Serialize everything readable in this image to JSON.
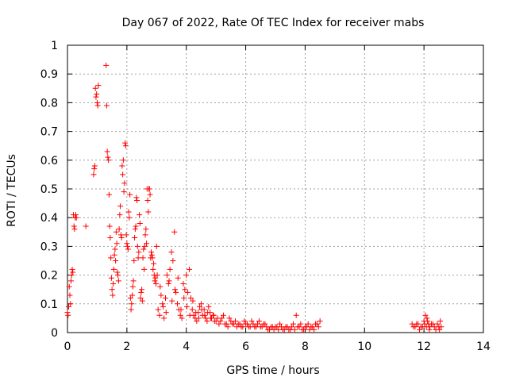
{
  "chart_data": {
    "type": "scatter",
    "title": "Day 067 of 2022, Rate Of TEC Index for receiver mabs",
    "xlabel": "GPS time / hours",
    "ylabel": "ROTI / TECUs",
    "xlim": [
      0,
      14
    ],
    "ylim": [
      0,
      1
    ],
    "x_ticks": [
      0,
      2,
      4,
      6,
      8,
      10,
      12,
      14
    ],
    "y_ticks": [
      0,
      0.1,
      0.2,
      0.3,
      0.4,
      0.5,
      0.6,
      0.7,
      0.8,
      0.9,
      1
    ],
    "x_tick_labels": [
      "0",
      "2",
      "4",
      "6",
      "8",
      "10",
      "12",
      "14"
    ],
    "y_tick_labels": [
      "0",
      "0.1",
      "0.2",
      "0.3",
      "0.4",
      "0.5",
      "0.6",
      "0.7",
      "0.8",
      "0.9",
      "1"
    ],
    "grid": true,
    "marker": "+",
    "color": "#ff0000",
    "series": [
      {
        "name": "ROTI",
        "x": [
          0.0,
          0.02,
          0.04,
          0.06,
          0.08,
          0.1,
          0.12,
          0.14,
          0.16,
          0.18,
          0.2,
          0.22,
          0.24,
          0.26,
          0.28,
          0.3,
          0.62,
          0.88,
          0.9,
          0.92,
          0.94,
          0.96,
          0.98,
          1.0,
          1.02,
          1.04,
          1.3,
          1.32,
          1.34,
          1.36,
          1.38,
          1.4,
          1.42,
          1.44,
          1.46,
          1.48,
          1.5,
          1.52,
          1.54,
          1.56,
          1.58,
          1.6,
          1.62,
          1.64,
          1.66,
          1.68,
          1.7,
          1.72,
          1.74,
          1.76,
          1.78,
          1.8,
          1.82,
          1.84,
          1.86,
          1.88,
          1.9,
          1.92,
          1.94,
          1.96,
          1.98,
          2.0,
          2.02,
          2.04,
          2.06,
          2.08,
          2.1,
          2.12,
          2.14,
          2.16,
          2.18,
          2.2,
          2.22,
          2.24,
          2.26,
          2.28,
          2.3,
          2.32,
          2.34,
          2.36,
          2.38,
          2.4,
          2.42,
          2.44,
          2.46,
          2.48,
          2.5,
          2.52,
          2.54,
          2.56,
          2.58,
          2.6,
          2.62,
          2.64,
          2.66,
          2.68,
          2.7,
          2.72,
          2.74,
          2.76,
          2.78,
          2.8,
          2.82,
          2.84,
          2.86,
          2.88,
          2.9,
          2.92,
          2.94,
          2.96,
          2.98,
          3.0,
          3.05,
          3.1,
          3.15,
          3.2,
          3.25,
          3.3,
          3.35,
          3.4,
          3.45,
          3.5,
          3.55,
          3.6,
          3.65,
          3.7,
          3.75,
          3.8,
          3.85,
          3.9,
          3.95,
          4.0,
          4.05,
          4.1,
          4.15,
          4.2,
          4.25,
          4.3,
          4.35,
          4.4,
          4.45,
          4.5,
          4.55,
          4.6,
          4.65,
          4.7,
          4.75,
          4.8,
          4.85,
          4.9,
          4.95,
          5.0,
          5.1,
          5.2,
          5.3,
          5.4,
          5.5,
          5.6,
          5.7,
          5.8,
          5.9,
          6.0,
          6.1,
          6.2,
          6.3,
          6.4,
          6.5,
          6.6,
          6.7,
          6.8,
          6.9,
          7.0,
          7.1,
          7.2,
          7.3,
          7.4,
          7.5,
          7.6,
          7.7,
          7.8,
          7.9,
          8.0,
          8.1,
          8.2,
          8.3,
          8.4,
          8.5,
          11.6,
          11.7,
          11.8,
          11.9,
          12.0,
          12.05,
          12.1,
          12.15,
          12.2,
          12.3,
          12.4,
          12.5,
          12.55,
          3.02,
          3.12,
          3.22,
          3.32,
          3.42,
          3.52,
          3.62,
          3.72,
          3.82,
          3.92,
          4.02,
          4.12,
          4.22,
          4.32,
          4.42,
          4.52,
          4.62,
          4.72,
          4.82,
          4.92,
          5.05,
          5.15,
          5.25,
          5.35,
          5.45,
          5.55,
          5.65,
          5.75,
          5.85,
          5.95,
          6.05,
          6.15,
          6.25,
          6.35,
          6.45,
          6.55,
          6.65,
          6.75,
          6.85,
          6.95,
          7.05,
          7.15,
          7.25,
          7.35,
          7.45,
          7.55,
          7.65,
          7.75,
          7.85,
          7.95,
          8.05,
          8.15,
          8.25,
          8.35,
          8.45,
          11.65,
          11.75,
          11.85,
          11.95,
          12.02,
          12.08,
          12.12,
          12.18,
          12.25,
          12.35,
          12.45,
          12.52,
          12.58
        ],
        "y": [
          0.07,
          0.06,
          0.09,
          0.16,
          0.13,
          0.1,
          0.18,
          0.2,
          0.22,
          0.21,
          0.41,
          0.37,
          0.36,
          0.4,
          0.41,
          0.4,
          0.37,
          0.55,
          0.57,
          0.58,
          0.85,
          0.82,
          0.83,
          0.8,
          0.79,
          0.86,
          0.93,
          0.79,
          0.63,
          0.61,
          0.6,
          0.48,
          0.37,
          0.33,
          0.26,
          0.19,
          0.15,
          0.13,
          0.17,
          0.22,
          0.27,
          0.29,
          0.25,
          0.35,
          0.31,
          0.21,
          0.2,
          0.18,
          0.36,
          0.41,
          0.44,
          0.34,
          0.33,
          0.58,
          0.55,
          0.6,
          0.49,
          0.52,
          0.66,
          0.65,
          0.34,
          0.31,
          0.3,
          0.29,
          0.42,
          0.4,
          0.48,
          0.12,
          0.08,
          0.1,
          0.13,
          0.16,
          0.18,
          0.25,
          0.33,
          0.36,
          0.37,
          0.47,
          0.46,
          0.3,
          0.26,
          0.28,
          0.41,
          0.38,
          0.12,
          0.14,
          0.15,
          0.11,
          0.26,
          0.29,
          0.22,
          0.3,
          0.34,
          0.36,
          0.31,
          0.5,
          0.46,
          0.42,
          0.5,
          0.5,
          0.48,
          0.26,
          0.28,
          0.27,
          0.26,
          0.22,
          0.24,
          0.2,
          0.18,
          0.19,
          0.17,
          0.3,
          0.08,
          0.06,
          0.13,
          0.1,
          0.05,
          0.12,
          0.2,
          0.17,
          0.22,
          0.28,
          0.25,
          0.35,
          0.14,
          0.1,
          0.08,
          0.06,
          0.05,
          0.17,
          0.15,
          0.2,
          0.14,
          0.22,
          0.12,
          0.08,
          0.06,
          0.05,
          0.04,
          0.07,
          0.09,
          0.1,
          0.06,
          0.08,
          0.05,
          0.04,
          0.09,
          0.07,
          0.05,
          0.06,
          0.04,
          0.04,
          0.03,
          0.05,
          0.03,
          0.02,
          0.04,
          0.03,
          0.02,
          0.03,
          0.02,
          0.03,
          0.02,
          0.04,
          0.02,
          0.03,
          0.02,
          0.03,
          0.02,
          0.01,
          0.02,
          0.02,
          0.01,
          0.02,
          0.01,
          0.02,
          0.01,
          0.03,
          0.06,
          0.02,
          0.01,
          0.02,
          0.03,
          0.02,
          0.01,
          0.03,
          0.04,
          0.03,
          0.02,
          0.03,
          0.02,
          0.04,
          0.06,
          0.05,
          0.03,
          0.02,
          0.03,
          0.01,
          0.02,
          0.04,
          0.2,
          0.16,
          0.09,
          0.07,
          0.18,
          0.11,
          0.15,
          0.19,
          0.08,
          0.12,
          0.09,
          0.06,
          0.11,
          0.07,
          0.05,
          0.08,
          0.06,
          0.07,
          0.05,
          0.06,
          0.05,
          0.04,
          0.06,
          0.03,
          0.05,
          0.03,
          0.04,
          0.03,
          0.02,
          0.04,
          0.03,
          0.02,
          0.03,
          0.02,
          0.04,
          0.02,
          0.03,
          0.01,
          0.02,
          0.01,
          0.02,
          0.03,
          0.01,
          0.02,
          0.01,
          0.02,
          0.01,
          0.02,
          0.03,
          0.01,
          0.02,
          0.01,
          0.02,
          0.03,
          0.02,
          0.02,
          0.03,
          0.01,
          0.02,
          0.03,
          0.02,
          0.04,
          0.01,
          0.03,
          0.02,
          0.03,
          0.01,
          0.02
        ]
      }
    ]
  }
}
